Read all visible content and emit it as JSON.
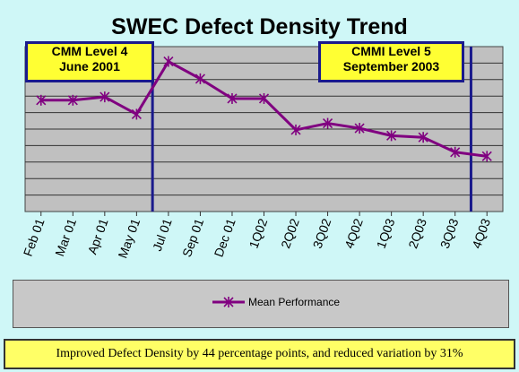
{
  "chart_data": {
    "type": "line",
    "title": "SWEC Defect Density Trend",
    "categories": [
      "Feb 01",
      "Mar 01",
      "Apr 01",
      "May 01",
      "Jul 01",
      "Sep 01",
      "Dec 01",
      "1Q02",
      "2Q02",
      "3Q02",
      "4Q02",
      "1Q03",
      "2Q03",
      "3Q03",
      "4Q03"
    ],
    "series": [
      {
        "name": "Mean Performance",
        "values": [
          6.75,
          6.75,
          6.95,
          5.9,
          9.1,
          8.05,
          6.85,
          6.85,
          4.95,
          5.35,
          5.05,
          4.6,
          4.5,
          3.6,
          3.35
        ]
      }
    ],
    "ylim": [
      0,
      10
    ],
    "y_gridlines": 10,
    "grid": true,
    "legend_position": "bottom",
    "line_color": "#800080",
    "marker": "asterisk",
    "plot_background": "#c0c0c0",
    "annotations": [
      {
        "text_lines": [
          "CMM Level 4",
          "June 2001"
        ],
        "marks_between": [
          "May 01",
          "Jul 01"
        ]
      },
      {
        "text_lines": [
          "CMMI Level 5",
          "September 2003"
        ],
        "marks_between": [
          "3Q03",
          "4Q03"
        ]
      }
    ]
  },
  "footer_text": "Improved Defect Density by 44 percentage points, and reduced variation by 31%",
  "colors": {
    "slide_background": "#cff7f7",
    "callout_fill": "#ffff33",
    "callout_border": "#1a1a8c",
    "milestone_line": "#1a1a8c",
    "footer_fill": "#ffff66"
  }
}
